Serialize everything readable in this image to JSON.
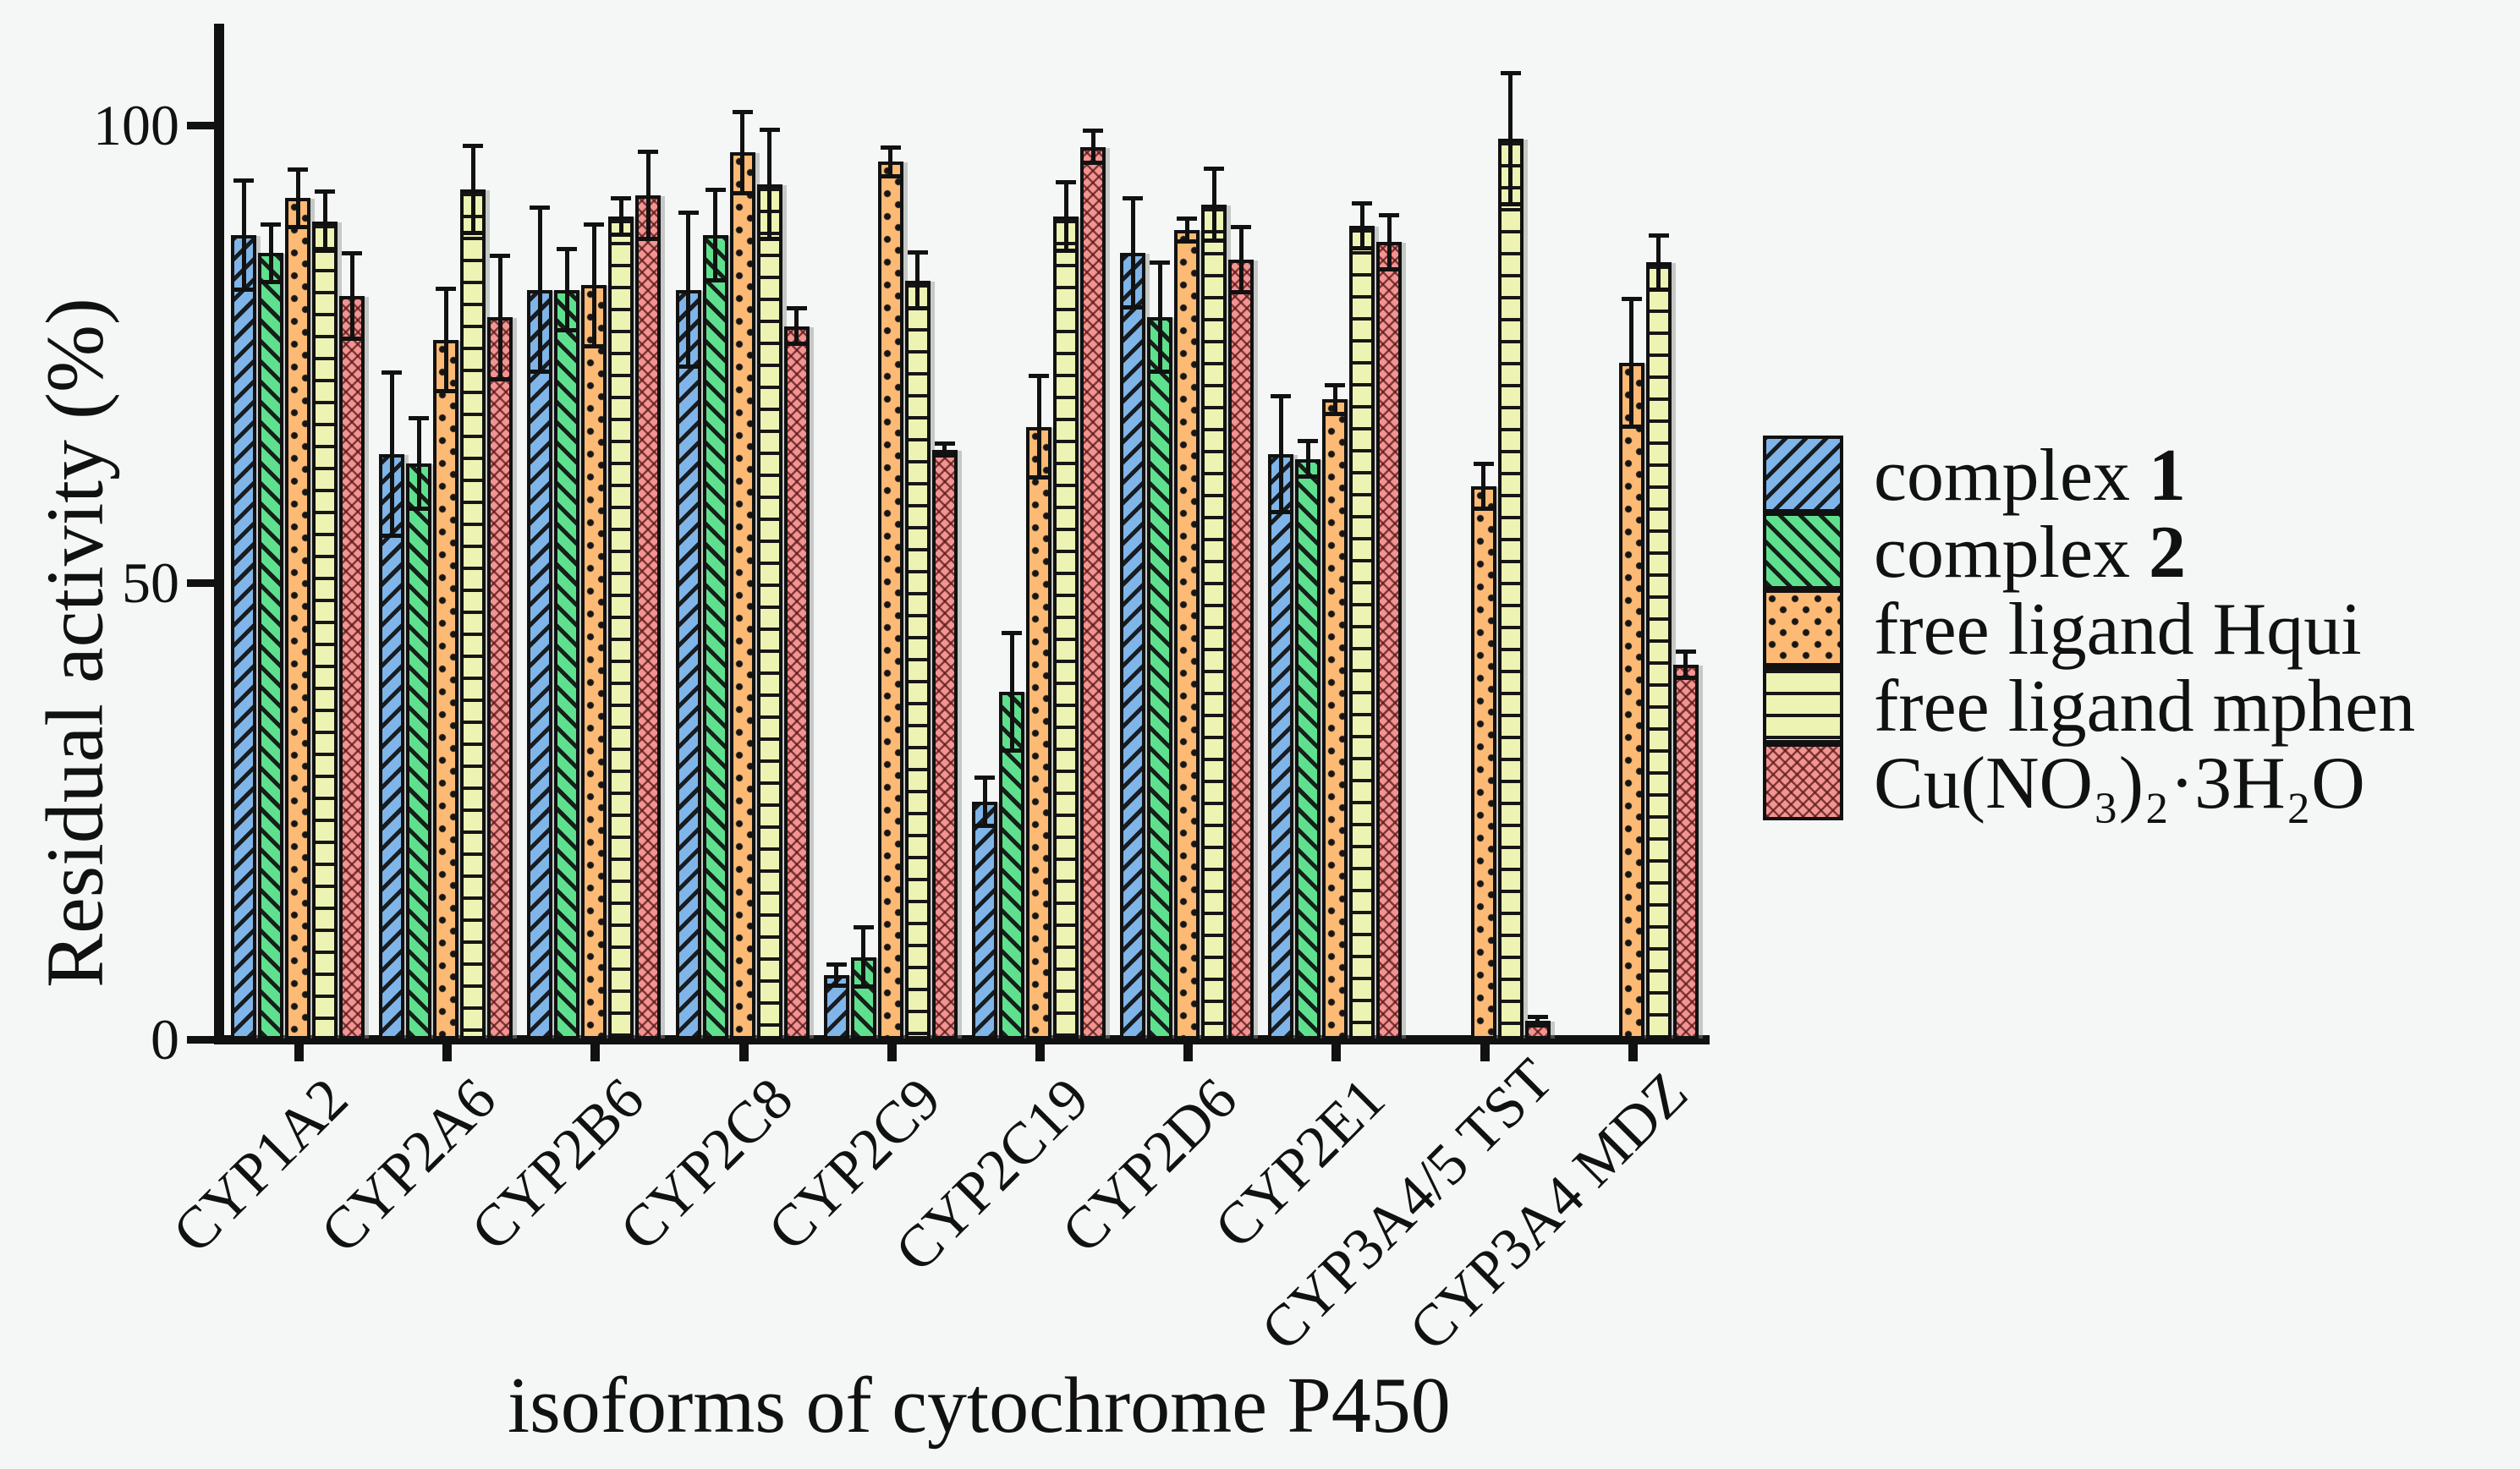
{
  "figure": {
    "background": "#f5f7f6",
    "axis_color": "#111111"
  },
  "axes": {
    "y_tick_labels": [
      "0",
      "50",
      "100"
    ],
    "y_tick_values": [
      0,
      50,
      100
    ]
  },
  "chart_data": {
    "type": "bar",
    "title": "",
    "xlabel": "isoforms of cytochrome P450",
    "ylabel": "Residual activity (%)",
    "ylim": [
      0,
      111
    ],
    "yticks": [
      0,
      50,
      100
    ],
    "grid": false,
    "legend_position": "right",
    "error_bars": true,
    "categories": [
      "CYP1A2",
      "CYP2A6",
      "CYP2B6",
      "CYP2C8",
      "CYP2C9",
      "CYP2C19",
      "CYP2D6",
      "CYP2E1",
      "CYP3A4/5 TST",
      "CYP3A4 MDZ"
    ],
    "series": [
      {
        "name": "complex 1",
        "legend_text": "complex ",
        "legend_bold": "1",
        "color": "#7fb5e8",
        "pattern": "diag-up",
        "values": [
          88,
          64,
          82,
          82,
          7,
          26,
          86,
          64,
          null,
          null
        ],
        "errors": [
          6,
          9,
          9,
          8.5,
          1.2,
          2.7,
          6,
          6.4,
          null,
          null
        ]
      },
      {
        "name": "complex 2",
        "legend_text": "complex ",
        "legend_bold": "2",
        "color": "#5fe08e",
        "pattern": "diag-down",
        "values": [
          86,
          63,
          82,
          88,
          9,
          38,
          79,
          63.5,
          null,
          null
        ],
        "errors": [
          3.2,
          5,
          4.5,
          5,
          3.3,
          6.5,
          6,
          2,
          null,
          null
        ]
      },
      {
        "name": "free ligand Hqui",
        "legend_text": "free ligand Hqui",
        "legend_bold": "",
        "color": "#fcba75",
        "pattern": "dots",
        "values": [
          92,
          76.5,
          82.5,
          97,
          96,
          67,
          88.5,
          70,
          60.5,
          74
        ],
        "errors": [
          3.2,
          5.6,
          6.7,
          4.5,
          1.6,
          5.6,
          1.3,
          1.6,
          2.5,
          7
        ]
      },
      {
        "name": "free ligand mphen",
        "legend_text": "free ligand mphen",
        "legend_bold": "",
        "color": "#edf3b2",
        "pattern": "hlines",
        "values": [
          89.5,
          93,
          90,
          93.5,
          83,
          90,
          91.3,
          89,
          98.5,
          85
        ],
        "errors": [
          3.3,
          4.8,
          2,
          6,
          3.1,
          3.8,
          4,
          2.5,
          7.2,
          3
        ]
      },
      {
        "name": "Cu(NO₃)₂·3H₂O",
        "legend_text": "Cu(NO₃)₂·3H₂O",
        "legend_bold": "",
        "color": "#f29492",
        "pattern": "chevrons",
        "values": [
          81.3,
          79,
          92.3,
          78,
          64.5,
          97.6,
          85.3,
          87.2,
          2,
          41
        ],
        "errors": [
          4.7,
          6.8,
          4.8,
          2,
          0.7,
          1.8,
          3.6,
          3,
          0.5,
          1.5
        ]
      }
    ]
  }
}
